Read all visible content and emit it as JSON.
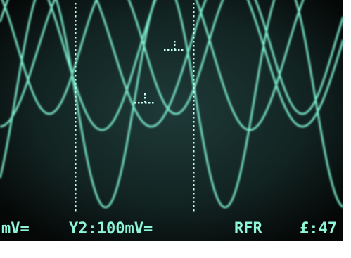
{
  "screen": {
    "readouts": [
      "mV=",
      "Y2:100mV=",
      "RFR",
      "£:47"
    ]
  }
}
